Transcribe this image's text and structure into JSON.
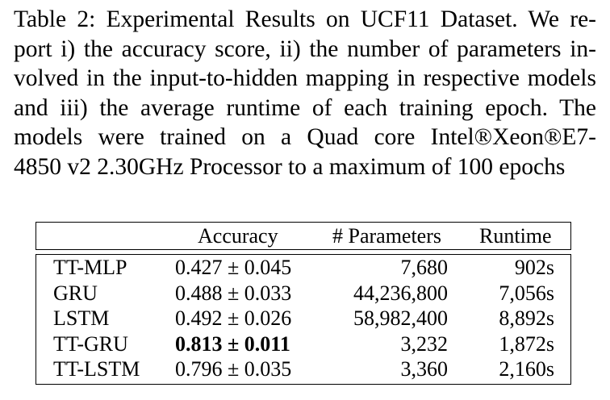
{
  "caption": {
    "lines": [
      "Table 2: Experimental Results on UCF11 Dataset. We re-",
      "port i) the accuracy score, ii) the number of parameters in-",
      "volved in the input-to-hidden mapping in respective models",
      "and iii) the average runtime of each training epoch. The",
      "models were trained on a Quad core Intel®Xeon®E7-",
      "4850 v2 2.30GHz Processor to a maximum of 100 epochs"
    ]
  },
  "table": {
    "headers": {
      "model": "",
      "accuracy": "Accuracy",
      "parameters": "# Parameters",
      "runtime": "Runtime"
    },
    "rows": [
      {
        "model": "TT-MLP",
        "accuracy": "0.427 ± 0.045",
        "parameters": "7,680",
        "runtime": "902s",
        "bold": false
      },
      {
        "model": "GRU",
        "accuracy": "0.488 ± 0.033",
        "parameters": "44,236,800",
        "runtime": "7,056s",
        "bold": false
      },
      {
        "model": "LSTM",
        "accuracy": "0.492 ± 0.026",
        "parameters": "58,982,400",
        "runtime": "8,892s",
        "bold": false
      },
      {
        "model": "TT-GRU",
        "accuracy": "0.813 ± 0.011",
        "parameters": "3,232",
        "runtime": "1,872s",
        "bold": true
      },
      {
        "model": "TT-LSTM",
        "accuracy": "0.796 ± 0.035",
        "parameters": "3,360",
        "runtime": "2,160s",
        "bold": false
      }
    ]
  }
}
